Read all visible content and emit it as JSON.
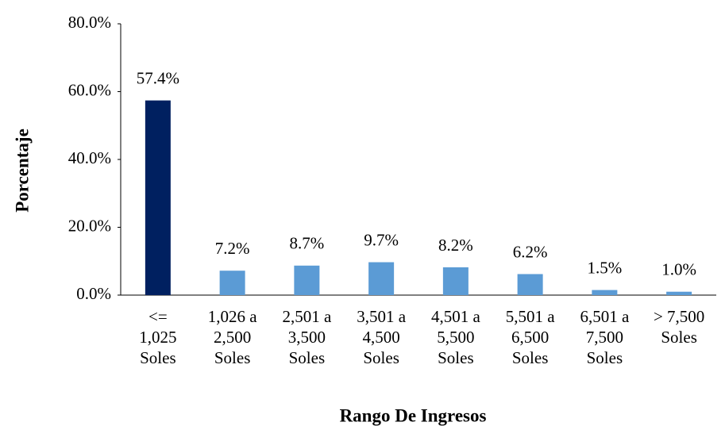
{
  "chart_data": {
    "type": "bar",
    "xlabel": "Rango De Ingresos",
    "ylabel": "Porcentaje",
    "categories": [
      "<= 1,025 Soles",
      "1,026 a 2,500 Soles",
      "2,501 a 3,500 Soles",
      "3,501 a 4,500 Soles",
      "4,501 a 5,500 Soles",
      "5,501 a 6,500 Soles",
      "6,501 a 7,500 Soles",
      "> 7,500 Soles"
    ],
    "values": [
      57.4,
      7.2,
      8.7,
      9.7,
      8.2,
      6.2,
      1.5,
      1.0
    ],
    "value_labels": [
      "57.4%",
      "7.2%",
      "8.7%",
      "9.7%",
      "8.2%",
      "6.2%",
      "1.5%",
      "1.0%"
    ],
    "colors": [
      "#002060",
      "#5b9bd5",
      "#5b9bd5",
      "#5b9bd5",
      "#5b9bd5",
      "#5b9bd5",
      "#5b9bd5",
      "#5b9bd5"
    ],
    "ylim": [
      0,
      80
    ],
    "yticks": [
      {
        "value": 0,
        "label": "0.0%"
      },
      {
        "value": 20,
        "label": "20.0%"
      },
      {
        "value": 40,
        "label": "40.0%"
      },
      {
        "value": 60,
        "label": "60.0%"
      },
      {
        "value": 80,
        "label": "80.0%"
      }
    ],
    "grid": false
  }
}
